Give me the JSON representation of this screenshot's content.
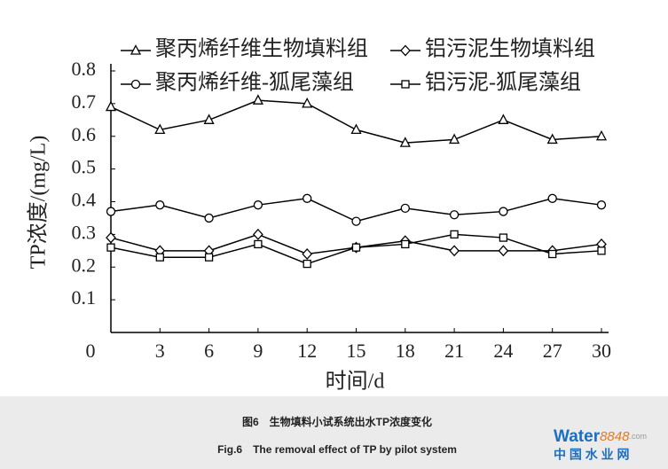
{
  "chart_data": {
    "type": "line",
    "x_label": "时间/d",
    "y_label": "TP浓度/(mg/L)",
    "x": [
      0,
      3,
      6,
      9,
      12,
      15,
      18,
      21,
      24,
      27,
      30
    ],
    "xlim": [
      0,
      30
    ],
    "xticks": [
      3,
      6,
      9,
      12,
      15,
      18,
      21,
      24,
      27,
      30
    ],
    "ylim": [
      0,
      0.8
    ],
    "yticks": [
      0,
      0.1,
      0.2,
      0.3,
      0.4,
      0.5,
      0.6,
      0.7,
      0.8
    ],
    "grid": false,
    "series": [
      {
        "name": "聚丙烯纤维生物填料组",
        "color": "#000000",
        "marker": "triangle",
        "values": [
          0.69,
          0.62,
          0.65,
          0.71,
          0.7,
          0.62,
          0.58,
          0.59,
          0.65,
          0.59,
          0.6
        ]
      },
      {
        "name": "铝污泥生物填料组",
        "color": "#000000",
        "marker": "diamond",
        "values": [
          0.29,
          0.25,
          0.25,
          0.3,
          0.24,
          0.26,
          0.28,
          0.25,
          0.25,
          0.25,
          0.27
        ]
      },
      {
        "name": "聚丙烯纤维-狐尾藻组",
        "color": "#000000",
        "marker": "circle",
        "values": [
          0.37,
          0.39,
          0.35,
          0.39,
          0.41,
          0.34,
          0.38,
          0.36,
          0.37,
          0.41,
          0.39
        ]
      },
      {
        "name": "铝污泥-狐尾藻组",
        "color": "#000000",
        "marker": "square",
        "values": [
          0.26,
          0.23,
          0.23,
          0.27,
          0.21,
          0.26,
          0.27,
          0.3,
          0.29,
          0.24,
          0.25
        ]
      }
    ]
  },
  "caption": {
    "cn": "图6　生物填料小试系统出水TP浓度变化",
    "en": "Fig.6　The removal effect of TP by pilot system"
  },
  "watermark": {
    "brand": "Water",
    "number": "8848",
    "domain": ".com",
    "cn": "中 国 水 业 网"
  }
}
